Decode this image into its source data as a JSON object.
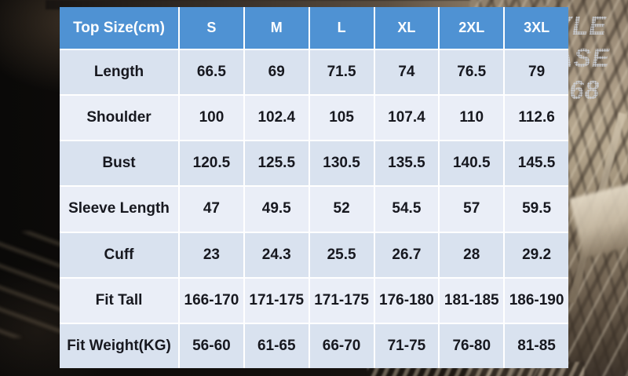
{
  "watermark": {
    "lines": [
      "YLE",
      "ASE",
      "168"
    ]
  },
  "table": {
    "header": [
      "Top Size(cm)",
      "S",
      "M",
      "L",
      "XL",
      "2XL",
      "3XL"
    ],
    "rows": [
      {
        "label": "Length",
        "values": [
          "66.5",
          "69",
          "71.5",
          "74",
          "76.5",
          "79"
        ]
      },
      {
        "label": "Shoulder",
        "values": [
          "100",
          "102.4",
          "105",
          "107.4",
          "110",
          "112.6"
        ]
      },
      {
        "label": "Bust",
        "values": [
          "120.5",
          "125.5",
          "130.5",
          "135.5",
          "140.5",
          "145.5"
        ]
      },
      {
        "label": "Sleeve Length",
        "values": [
          "47",
          "49.5",
          "52",
          "54.5",
          "57",
          "59.5"
        ]
      },
      {
        "label": "Cuff",
        "values": [
          "23",
          "24.3",
          "25.5",
          "26.7",
          "28",
          "29.2"
        ]
      },
      {
        "label": "Fit Tall",
        "values": [
          "166-170",
          "171-175",
          "171-175",
          "176-180",
          "181-185",
          "186-190"
        ]
      },
      {
        "label": "Fit Weight(KG)",
        "values": [
          "56-60",
          "61-65",
          "66-70",
          "71-75",
          "76-80",
          "81-85"
        ]
      }
    ],
    "colors": {
      "header_bg": "#4f92d3",
      "header_text": "#ffffff",
      "row_blue": "#d9e2ef",
      "row_light": "#eaeef7",
      "separator": "#ffffff",
      "cell_text": "#17181f"
    }
  },
  "chart_data": {
    "type": "table",
    "title": "Top Size(cm)",
    "columns": [
      "Top Size(cm)",
      "S",
      "M",
      "L",
      "XL",
      "2XL",
      "3XL"
    ],
    "rows": [
      [
        "Length",
        "66.5",
        "69",
        "71.5",
        "74",
        "76.5",
        "79"
      ],
      [
        "Shoulder",
        "100",
        "102.4",
        "105",
        "107.4",
        "110",
        "112.6"
      ],
      [
        "Bust",
        "120.5",
        "125.5",
        "130.5",
        "135.5",
        "140.5",
        "145.5"
      ],
      [
        "Sleeve Length",
        "47",
        "49.5",
        "52",
        "54.5",
        "57",
        "59.5"
      ],
      [
        "Cuff",
        "23",
        "24.3",
        "25.5",
        "26.7",
        "28",
        "29.2"
      ],
      [
        "Fit Tall",
        "166-170",
        "171-175",
        "171-175",
        "176-180",
        "181-185",
        "186-190"
      ],
      [
        "Fit Weight(KG)",
        "56-60",
        "61-65",
        "66-70",
        "71-75",
        "76-80",
        "81-85"
      ]
    ]
  }
}
